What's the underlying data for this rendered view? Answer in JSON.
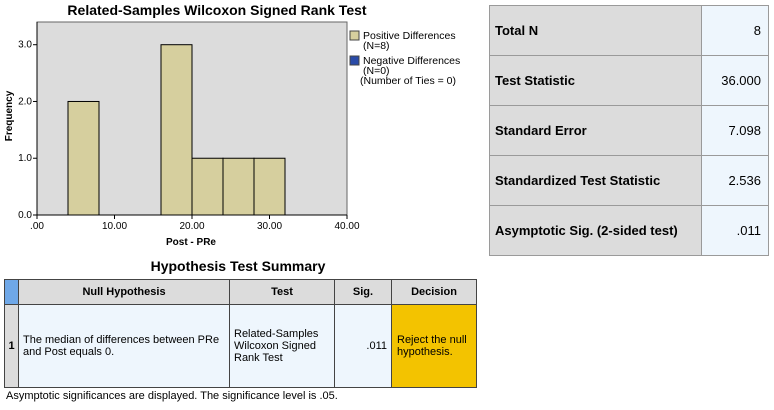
{
  "chart_data": {
    "type": "bar",
    "title": "Related-Samples Wilcoxon Signed Rank Test",
    "xlabel": "Post - PRe",
    "ylabel": "Frequency",
    "xlim": [
      0,
      40
    ],
    "ylim": [
      0,
      3.4
    ],
    "x_ticks": [
      ".00",
      "10.00",
      "20.00",
      "30.00",
      "40.00"
    ],
    "x_tick_values": [
      0,
      10,
      20,
      30,
      40
    ],
    "y_ticks": [
      "0.0",
      "1.0",
      "2.0",
      "3.0"
    ],
    "y_tick_values": [
      0,
      1,
      2,
      3
    ],
    "bins": [
      {
        "x0": 4,
        "x1": 8,
        "count": 2
      },
      {
        "x0": 16,
        "x1": 20,
        "count": 3
      },
      {
        "x0": 20,
        "x1": 24,
        "count": 1
      },
      {
        "x0": 24,
        "x1": 28,
        "count": 1
      },
      {
        "x0": 28,
        "x1": 32,
        "count": 1
      }
    ],
    "legend": [
      {
        "lines": [
          "Positive Differences",
          "(N=8)"
        ],
        "color": "#d6cf9e"
      },
      {
        "lines": [
          "Negative Differences",
          "(N=0)",
          "(Number of Ties = 0)"
        ],
        "color": "#2a4ba8"
      }
    ],
    "bar_color": "#d6cf9e",
    "plot_bg": "#dcdcdc",
    "legend_position": "right"
  },
  "stats": [
    {
      "label": "Total N",
      "value": "8"
    },
    {
      "label": "Test Statistic",
      "value": "36.000"
    },
    {
      "label": "Standard Error",
      "value": "7.098"
    },
    {
      "label": "Standardized Test Statistic",
      "value": "2.536"
    },
    {
      "label": "Asymptotic Sig. (2-sided test)",
      "value": ".011"
    }
  ],
  "hypothesis": {
    "title": "Hypothesis Test Summary",
    "headers": {
      "null": "Null Hypothesis",
      "test": "Test",
      "sig": "Sig.",
      "decision": "Decision"
    },
    "row": {
      "num": "1",
      "null": "The median of differences between PRe and Post equals 0.",
      "test": "Related-Samples Wilcoxon Signed Rank Test",
      "sig": ".011",
      "decision": "Reject the null hypothesis."
    }
  },
  "footnote": "Asymptotic significances are displayed.  The significance level is .05."
}
